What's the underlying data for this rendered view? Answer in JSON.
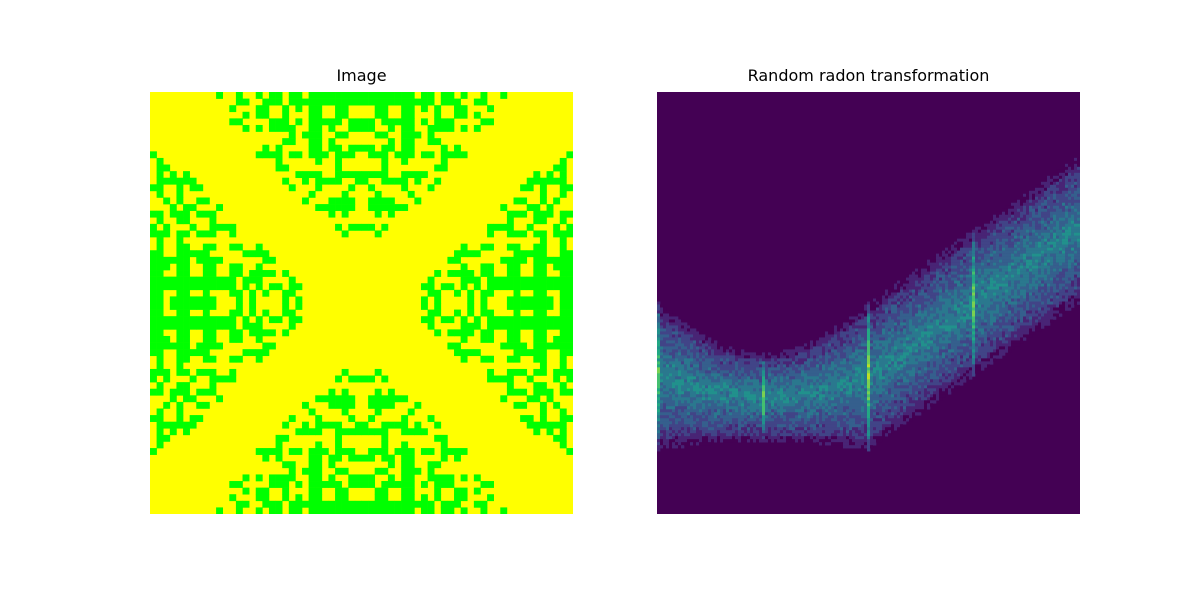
{
  "chart_data": [
    {
      "type": "heatmap",
      "title": "Image",
      "description_colors": {
        "background": "#ffff00",
        "foreground": "#00ff00"
      },
      "grid_size": [
        64,
        64
      ],
      "pattern": "symmetric binary X-shaped pattern: yellow diagonal bands crossing at center, green blocky rectangles in top/bottom/left/right regions"
    },
    {
      "type": "heatmap",
      "title": "Random radon transformation",
      "colormap": "viridis",
      "background": "#440154",
      "pattern": "sinusoidal band of low-to-mid intensity spanning from left (rows ~210-360) dipping to center-left then rising to top-right (rows ~65-300); bright vertical streaks at x≈0.25, 0.5, 0.75 of width"
    }
  ]
}
